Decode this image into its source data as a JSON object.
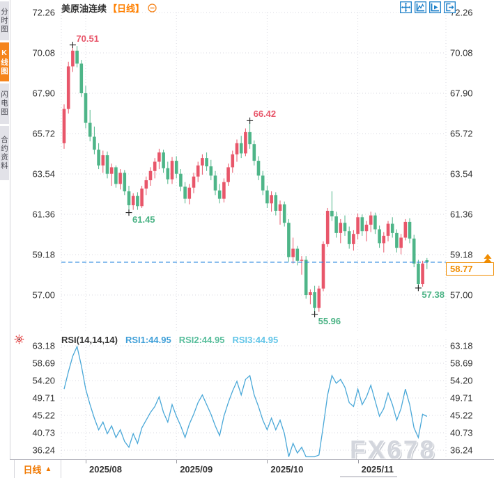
{
  "sidebar": {
    "tabs": [
      {
        "label": "分时图",
        "active": false
      },
      {
        "label": "K线图",
        "active": true
      },
      {
        "label": "闪电图",
        "active": false
      },
      {
        "label": "合约资料",
        "active": false
      }
    ]
  },
  "header": {
    "symbol": "美原油连续",
    "period_tag": "【日线】",
    "collapse_icon": "minus-circle-icon",
    "toolbar_icons": [
      "move-crosshair-icon",
      "auto-scale-axis-icon",
      "axis-play-icon",
      "go-to-latest-icon"
    ]
  },
  "price_pane": {
    "last_price_text": "58.77",
    "y_tick_labels": [
      "72.26",
      "70.08",
      "67.90",
      "65.72",
      "63.54",
      "61.36",
      "59.18",
      "57.00"
    ]
  },
  "rsi_pane": {
    "settings_icon": "sun-settings-icon",
    "label": "RSI(14,14,14)",
    "rsi1": "RSI1:44.95",
    "rsi2": "RSI2:44.95",
    "rsi3": "RSI3:44.95",
    "y_tick_labels": [
      "63.18",
      "58.69",
      "54.20",
      "49.71",
      "45.22",
      "40.73",
      "36.24"
    ]
  },
  "bottom_bar": {
    "period_label": "日线",
    "period_arrow": "▲",
    "date_ticks": [
      "2025/08",
      "2025/09",
      "2025/10",
      "2025/11"
    ]
  },
  "watermark": "FX678",
  "colors": {
    "accent_orange": "#f5841c",
    "period_orange": "#ff8000",
    "up_candle": "#e8566a",
    "down_candle": "#4eb588",
    "grid": "#d9d9e0",
    "axis_text": "#333333",
    "last_price_line": "#2f8be0",
    "last_price_label": "#f08c00",
    "rsi_line": "#4aa8d8",
    "toolbar_icon": "#1b7fc8",
    "cross_marker": "#222222",
    "watermark": "#d3d6dd"
  },
  "chart_data": [
    {
      "type": "candlestick",
      "title": "美原油连续 【日线】",
      "ylabel": "price",
      "ylim": [
        55.9,
        72.26
      ],
      "y_ticks": [
        72.26,
        70.08,
        67.9,
        65.72,
        63.54,
        61.36,
        59.18,
        57.0
      ],
      "x_tick_labels": [
        "2025/08",
        "2025/09",
        "2025/10",
        "2025/11"
      ],
      "month_tick_indices": [
        5,
        26,
        47,
        68
      ],
      "last_price": 58.77,
      "grid": "dotted",
      "up_color_meaning": "red = up (CN convention), green = down",
      "annotations": [
        {
          "index": 2,
          "price": 70.51,
          "kind": "high",
          "label": "70.51"
        },
        {
          "index": 43,
          "price": 66.42,
          "kind": "high",
          "label": "66.42"
        },
        {
          "index": 15,
          "price": 61.45,
          "kind": "low",
          "label": "61.45"
        },
        {
          "index": 58,
          "price": 55.96,
          "kind": "low",
          "label": "55.96"
        },
        {
          "index": 82,
          "price": 57.38,
          "kind": "low",
          "label": "57.38"
        }
      ],
      "candles_ohlc": [
        [
          65.2,
          67.3,
          64.9,
          67.05
        ],
        [
          67.05,
          69.6,
          66.8,
          69.35
        ],
        [
          69.35,
          70.51,
          69.05,
          70.2
        ],
        [
          70.2,
          70.45,
          69.3,
          69.5
        ],
        [
          69.5,
          69.7,
          67.7,
          67.9
        ],
        [
          67.9,
          68.3,
          66.0,
          66.3
        ],
        [
          66.3,
          67.0,
          65.3,
          65.55
        ],
        [
          65.55,
          66.1,
          64.6,
          64.85
        ],
        [
          64.85,
          65.2,
          63.8,
          64.0
        ],
        [
          64.0,
          64.8,
          63.6,
          64.55
        ],
        [
          64.55,
          64.75,
          63.3,
          63.55
        ],
        [
          63.55,
          64.1,
          62.9,
          63.9
        ],
        [
          63.9,
          64.0,
          62.8,
          63.0
        ],
        [
          63.0,
          63.8,
          62.7,
          63.6
        ],
        [
          63.6,
          63.75,
          62.4,
          62.6
        ],
        [
          62.6,
          62.9,
          61.45,
          61.85
        ],
        [
          61.85,
          62.5,
          61.6,
          62.35
        ],
        [
          62.35,
          62.55,
          61.6,
          61.8
        ],
        [
          61.8,
          62.9,
          61.7,
          62.75
        ],
        [
          62.75,
          63.4,
          62.4,
          63.2
        ],
        [
          63.2,
          63.9,
          62.9,
          63.7
        ],
        [
          63.7,
          64.4,
          63.3,
          64.2
        ],
        [
          64.2,
          64.9,
          63.8,
          64.7
        ],
        [
          64.7,
          64.85,
          63.6,
          63.85
        ],
        [
          63.85,
          64.2,
          63.0,
          63.25
        ],
        [
          63.25,
          64.45,
          63.0,
          64.25
        ],
        [
          64.25,
          64.5,
          63.3,
          63.55
        ],
        [
          63.55,
          63.8,
          62.6,
          62.85
        ],
        [
          62.85,
          63.1,
          61.95,
          62.2
        ],
        [
          62.2,
          63.0,
          61.9,
          62.8
        ],
        [
          62.8,
          63.6,
          62.5,
          63.4
        ],
        [
          63.4,
          64.2,
          63.1,
          64.0
        ],
        [
          64.0,
          64.6,
          63.5,
          64.4
        ],
        [
          64.4,
          64.7,
          63.7,
          63.95
        ],
        [
          63.95,
          64.3,
          63.2,
          63.45
        ],
        [
          63.45,
          63.7,
          62.4,
          62.65
        ],
        [
          62.65,
          63.0,
          61.95,
          62.2
        ],
        [
          62.2,
          63.3,
          62.0,
          63.1
        ],
        [
          63.1,
          64.1,
          62.9,
          63.9
        ],
        [
          63.9,
          64.8,
          63.6,
          64.6
        ],
        [
          64.6,
          65.4,
          64.2,
          65.2
        ],
        [
          65.2,
          65.6,
          64.4,
          64.65
        ],
        [
          64.65,
          66.0,
          64.5,
          65.8
        ],
        [
          65.8,
          66.42,
          64.9,
          65.15
        ],
        [
          65.15,
          65.35,
          64.0,
          64.25
        ],
        [
          64.25,
          64.5,
          63.2,
          63.45
        ],
        [
          63.45,
          63.7,
          62.4,
          62.65
        ],
        [
          62.65,
          62.9,
          61.7,
          61.95
        ],
        [
          61.95,
          62.6,
          61.5,
          62.4
        ],
        [
          62.4,
          62.55,
          61.3,
          61.55
        ],
        [
          61.55,
          62.1,
          60.8,
          61.9
        ],
        [
          61.9,
          62.05,
          60.7,
          60.9
        ],
        [
          60.9,
          61.1,
          58.8,
          59.05
        ],
        [
          59.05,
          60.1,
          58.7,
          59.5
        ],
        [
          59.5,
          59.65,
          58.6,
          58.85
        ],
        [
          58.85,
          59.1,
          58.1,
          58.9
        ],
        [
          58.9,
          59.1,
          56.8,
          57.0
        ],
        [
          57.0,
          57.3,
          56.5,
          57.15
        ],
        [
          57.15,
          57.5,
          55.96,
          56.3
        ],
        [
          56.3,
          57.5,
          56.1,
          57.35
        ],
        [
          57.35,
          59.9,
          57.2,
          59.75
        ],
        [
          59.75,
          61.7,
          59.6,
          61.55
        ],
        [
          61.55,
          62.6,
          61.0,
          61.25
        ],
        [
          61.25,
          61.5,
          60.1,
          60.35
        ],
        [
          60.35,
          61.1,
          59.8,
          60.9
        ],
        [
          60.9,
          61.3,
          60.2,
          60.45
        ],
        [
          60.45,
          60.7,
          59.5,
          59.75
        ],
        [
          59.75,
          60.5,
          59.4,
          60.3
        ],
        [
          60.3,
          61.4,
          60.0,
          61.2
        ],
        [
          61.2,
          61.35,
          60.2,
          60.45
        ],
        [
          60.45,
          61.0,
          59.9,
          60.8
        ],
        [
          60.8,
          61.5,
          60.4,
          61.3
        ],
        [
          61.3,
          61.45,
          60.3,
          60.55
        ],
        [
          60.55,
          60.75,
          59.55,
          59.8
        ],
        [
          59.8,
          60.4,
          59.3,
          60.2
        ],
        [
          60.2,
          61.0,
          59.9,
          60.85
        ],
        [
          60.85,
          61.2,
          60.1,
          60.35
        ],
        [
          60.35,
          60.55,
          59.3,
          59.55
        ],
        [
          59.55,
          60.3,
          59.2,
          60.1
        ],
        [
          60.1,
          61.1,
          59.95,
          60.95
        ],
        [
          60.95,
          61.15,
          59.8,
          60.05
        ],
        [
          60.05,
          60.25,
          58.5,
          58.7
        ],
        [
          58.7,
          58.9,
          57.38,
          57.6
        ],
        [
          57.6,
          58.85,
          57.45,
          58.7
        ],
        [
          58.88,
          59.0,
          58.4,
          58.77
        ]
      ]
    },
    {
      "type": "line",
      "title": "RSI(14,14,14)",
      "legend": [
        "RSI1:44.95",
        "RSI2:44.95",
        "RSI3:44.95"
      ],
      "rsi1": 44.95,
      "rsi2": 44.95,
      "rsi3": 44.95,
      "ylim": [
        31,
        64
      ],
      "y_ticks": [
        63.18,
        58.69,
        54.2,
        49.71,
        45.22,
        40.73,
        36.24
      ],
      "values": [
        52,
        56.5,
        60.5,
        63,
        58,
        52,
        48,
        44.5,
        41.5,
        43.5,
        40.5,
        42.5,
        39.5,
        41.5,
        38.5,
        37,
        40.5,
        38,
        42,
        44,
        46,
        47.5,
        50,
        46,
        43.5,
        48,
        45,
        42.5,
        39.5,
        43,
        45.5,
        48.5,
        50.5,
        48,
        45.5,
        42.5,
        40,
        45,
        48.5,
        51.5,
        54,
        50.5,
        54.5,
        55.5,
        50.5,
        47.5,
        44,
        41.5,
        44.5,
        41.5,
        44,
        40.5,
        34.5,
        38,
        35.5,
        37,
        32.5,
        34.5,
        31.5,
        35,
        42.5,
        50.5,
        55.5,
        53.5,
        54.5,
        52.5,
        48.5,
        47.5,
        52,
        48,
        50,
        53,
        49,
        45,
        47,
        51,
        48,
        44,
        47,
        52,
        48,
        42,
        39.5,
        45.5,
        44.95
      ]
    }
  ]
}
